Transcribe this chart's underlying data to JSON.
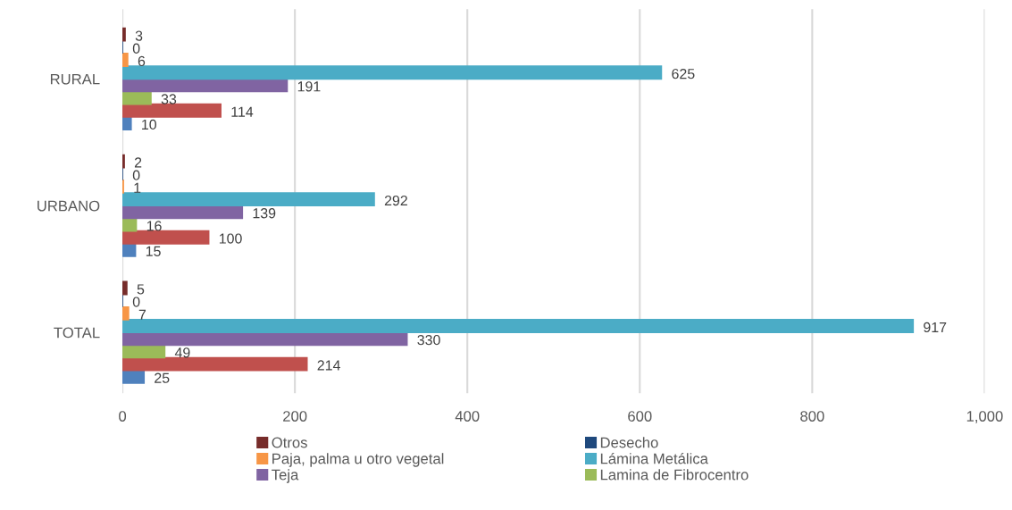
{
  "chart_data": {
    "type": "bar",
    "orientation": "horizontal",
    "categories": [
      "RURAL",
      "URBANO",
      "TOTAL"
    ],
    "series": [
      {
        "color": "#4f81bd",
        "values": [
          10,
          15,
          25
        ]
      },
      {
        "color": "#c0504d",
        "values": [
          114,
          100,
          214
        ]
      },
      {
        "name": "Lamina de Fibrocentro",
        "color": "#9bbb59",
        "values": [
          33,
          16,
          49
        ]
      },
      {
        "name": "Teja",
        "color": "#8064a2",
        "values": [
          191,
          139,
          330
        ]
      },
      {
        "name": "Lámina Metálica",
        "color": "#4bacc6",
        "values": [
          625,
          292,
          917
        ]
      },
      {
        "name": "Paja, palma u otro vegetal",
        "color": "#f79646",
        "values": [
          6,
          1,
          7
        ]
      },
      {
        "name": "Desecho",
        "color": "#1f497d",
        "values": [
          0,
          0,
          0
        ]
      },
      {
        "name": "Otros",
        "color": "#772c2a",
        "values": [
          3,
          2,
          5
        ]
      }
    ],
    "xlim": [
      0,
      1000
    ],
    "xticks": [
      0,
      200,
      400,
      600,
      800,
      {
        "value": 1000,
        "label": "1,000"
      }
    ],
    "grid": "x",
    "legend": "bottom",
    "data_labels": true
  }
}
